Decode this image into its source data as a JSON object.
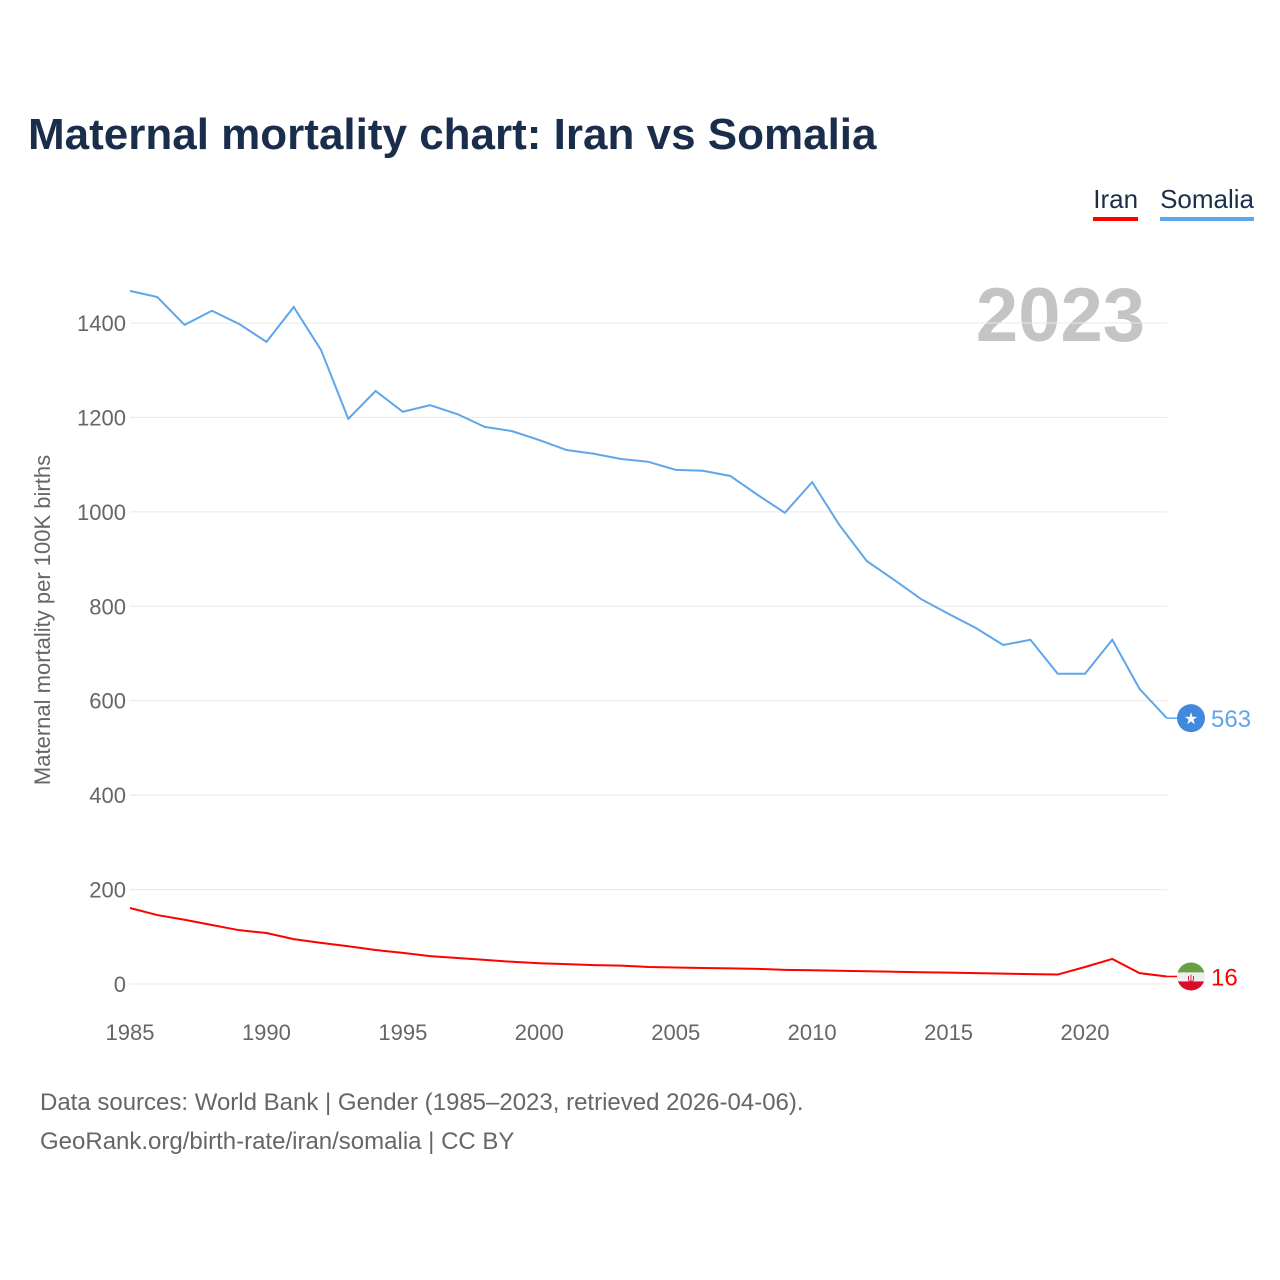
{
  "chart_data": {
    "type": "line",
    "title": "Maternal mortality chart: Iran vs Somalia",
    "xlabel": "",
    "ylabel": "Maternal mortality per 100K births",
    "xlim": [
      1985,
      2023
    ],
    "ylim": [
      0,
      1400
    ],
    "x_ticks": [
      1985,
      1990,
      1995,
      2000,
      2005,
      2010,
      2015,
      2020
    ],
    "y_ticks": [
      0,
      200,
      400,
      600,
      800,
      1000,
      1200,
      1400
    ],
    "year_label": "2023",
    "legend_placement": "top-right",
    "grid": true,
    "x": [
      1985,
      1986,
      1987,
      1988,
      1989,
      1990,
      1991,
      1992,
      1993,
      1994,
      1995,
      1996,
      1997,
      1998,
      1999,
      2000,
      2001,
      2002,
      2003,
      2004,
      2005,
      2006,
      2007,
      2008,
      2009,
      2010,
      2011,
      2012,
      2013,
      2014,
      2015,
      2016,
      2017,
      2018,
      2019,
      2020,
      2021,
      2022,
      2023
    ],
    "series": [
      {
        "name": "Iran",
        "color": "#ff0000",
        "end_label": "16",
        "values": [
          161,
          146,
          136,
          125,
          114,
          108,
          95,
          87,
          80,
          72,
          66,
          59,
          55,
          51,
          47,
          44,
          42,
          40,
          39,
          36,
          35,
          34,
          33,
          32,
          30,
          29,
          28,
          27,
          26,
          25,
          24,
          23,
          22,
          21,
          20,
          36,
          53,
          23,
          16
        ]
      },
      {
        "name": "Somalia",
        "color": "#5ea6ea",
        "end_label": "563",
        "values": [
          1468,
          1455,
          1396,
          1426,
          1398,
          1360,
          1434,
          1343,
          1197,
          1256,
          1212,
          1226,
          1207,
          1180,
          1171,
          1152,
          1131,
          1123,
          1112,
          1106,
          1089,
          1087,
          1076,
          1036,
          998,
          1063,
          972,
          896,
          856,
          815,
          784,
          754,
          718,
          729,
          657,
          657,
          729,
          625,
          563
        ]
      }
    ]
  },
  "footer": {
    "line1": "Data sources: World Bank | Gender (1985–2023, retrieved 2026-04-06).",
    "line2": "GeoRank.org/birth-rate/iran/somalia | CC BY"
  }
}
